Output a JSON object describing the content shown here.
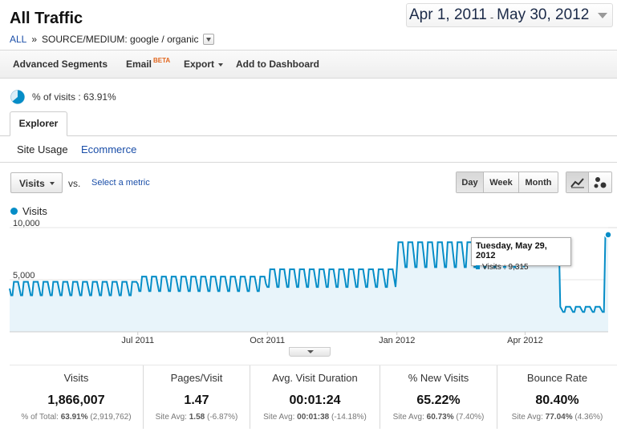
{
  "header": {
    "title": "All Traffic",
    "breadcrumb_root": "ALL",
    "breadcrumb_sep": "»",
    "breadcrumb_current": "SOURCE/MEDIUM: google / organic"
  },
  "date_range": {
    "start": "Apr 1, 2011",
    "separator": "-",
    "end": "May 30, 2012"
  },
  "toolbar": {
    "advanced_segments": "Advanced Segments",
    "email": "Email",
    "email_badge": "BETA",
    "export": "Export",
    "add_to_dashboard": "Add to Dashboard"
  },
  "segment": {
    "label": "% of visits : 63.91%",
    "fraction": 0.6391
  },
  "tabs": {
    "explorer": "Explorer",
    "site_usage": "Site Usage",
    "ecommerce": "Ecommerce"
  },
  "controls": {
    "metric": "Visits",
    "vs": "vs.",
    "select_metric": "Select a metric",
    "granularity": [
      "Day",
      "Week",
      "Month"
    ],
    "active_granularity": "Day",
    "chart_types": [
      "line-chart-icon",
      "motion-chart-icon"
    ]
  },
  "chart_data": {
    "type": "line",
    "series": [
      {
        "name": "Visits",
        "color": "#058dc7",
        "daily_pattern": "weekday peaks, weekend troughs"
      }
    ],
    "y_ticks": [
      "10,000",
      "5,000"
    ],
    "ylim": [
      0,
      10000
    ],
    "x_ticks": [
      "Jul 2011",
      "Oct 2011",
      "Jan 2012",
      "Apr 2012"
    ],
    "date_range": [
      "2011-04-01",
      "2012-05-30"
    ],
    "segments": [
      {
        "from": "2011-04-01",
        "to": "2011-06-30",
        "weekday": 4800,
        "weekend": 3500
      },
      {
        "from": "2011-07-01",
        "to": "2011-09-30",
        "weekday": 5300,
        "weekend": 3900
      },
      {
        "from": "2011-10-01",
        "to": "2011-12-31",
        "weekday": 6000,
        "weekend": 4300
      },
      {
        "from": "2012-01-01",
        "to": "2012-03-31",
        "weekday": 8600,
        "weekend": 6200
      },
      {
        "from": "2012-04-01",
        "to": "2012-04-25",
        "weekday": 8800,
        "weekend": 6600
      },
      {
        "from": "2012-04-26",
        "to": "2012-05-27",
        "weekday": 2400,
        "weekend": 1900
      },
      {
        "from": "2012-05-28",
        "to": "2012-05-30",
        "weekday": 9315,
        "weekend": 9315
      }
    ],
    "highlight": {
      "date": "Tuesday, May 29, 2012",
      "label": "Visits",
      "value": "9,315",
      "y": 9315
    }
  },
  "summary": [
    {
      "label": "Visits",
      "value": "1,866,007",
      "sub_prefix": "% of Total:",
      "sub_bold": "63.91%",
      "sub_rest": "(2,919,762)"
    },
    {
      "label": "Pages/Visit",
      "value": "1.47",
      "sub_prefix": "Site Avg:",
      "sub_bold": "1.58",
      "sub_rest": "(-6.87%)"
    },
    {
      "label": "Avg. Visit Duration",
      "value": "00:01:24",
      "sub_prefix": "Site Avg:",
      "sub_bold": "00:01:38",
      "sub_rest": "(-14.18%)"
    },
    {
      "label": "% New Visits",
      "value": "65.22%",
      "sub_prefix": "Site Avg:",
      "sub_bold": "60.73%",
      "sub_rest": "(7.40%)"
    },
    {
      "label": "Bounce Rate",
      "value": "80.40%",
      "sub_prefix": "Site Avg:",
      "sub_bold": "77.04%",
      "sub_rest": "(4.36%)"
    }
  ]
}
